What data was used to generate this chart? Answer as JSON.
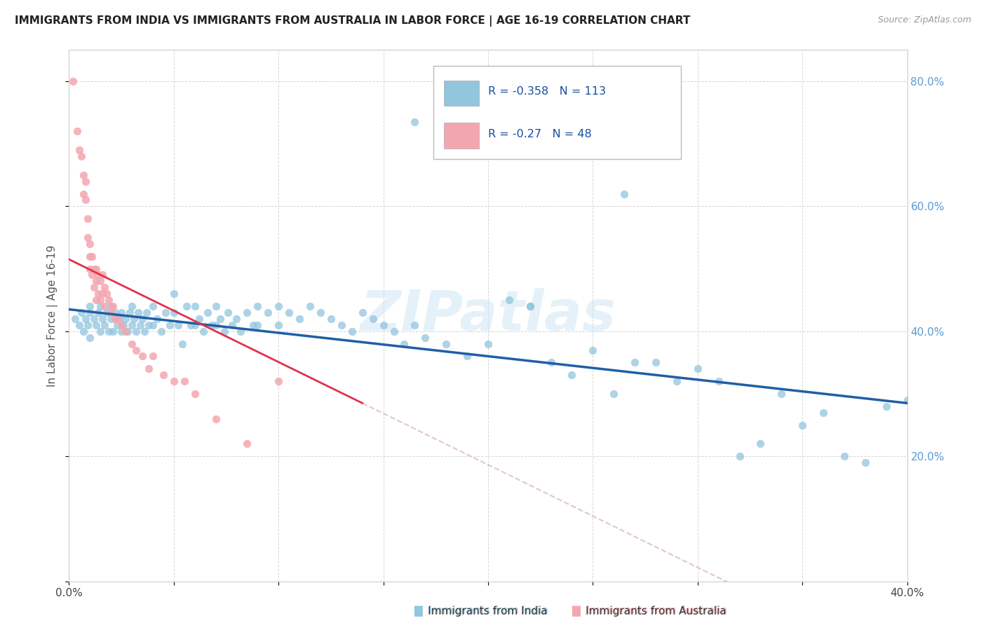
{
  "title": "IMMIGRANTS FROM INDIA VS IMMIGRANTS FROM AUSTRALIA IN LABOR FORCE | AGE 16-19 CORRELATION CHART",
  "source": "Source: ZipAtlas.com",
  "ylabel": "In Labor Force | Age 16-19",
  "xlim": [
    0.0,
    0.4
  ],
  "ylim": [
    0.0,
    0.85
  ],
  "x_ticks": [
    0.0,
    0.05,
    0.1,
    0.15,
    0.2,
    0.25,
    0.3,
    0.35,
    0.4
  ],
  "y_ticks": [
    0.0,
    0.2,
    0.4,
    0.6,
    0.8
  ],
  "india_R": -0.358,
  "india_N": 113,
  "australia_R": -0.27,
  "australia_N": 48,
  "india_color": "#92c5de",
  "australia_color": "#f4a6b0",
  "india_line_color": "#1f5fa6",
  "australia_line_color": "#e0324a",
  "watermark": "ZIPatlas",
  "india_points_x": [
    0.003,
    0.005,
    0.006,
    0.007,
    0.008,
    0.009,
    0.01,
    0.01,
    0.01,
    0.012,
    0.013,
    0.014,
    0.015,
    0.015,
    0.016,
    0.017,
    0.018,
    0.019,
    0.02,
    0.02,
    0.021,
    0.022,
    0.023,
    0.024,
    0.025,
    0.025,
    0.026,
    0.027,
    0.028,
    0.029,
    0.03,
    0.03,
    0.031,
    0.032,
    0.033,
    0.034,
    0.035,
    0.036,
    0.037,
    0.038,
    0.04,
    0.04,
    0.042,
    0.044,
    0.046,
    0.048,
    0.05,
    0.05,
    0.052,
    0.054,
    0.056,
    0.058,
    0.06,
    0.06,
    0.062,
    0.064,
    0.066,
    0.068,
    0.07,
    0.07,
    0.072,
    0.074,
    0.076,
    0.078,
    0.08,
    0.082,
    0.085,
    0.088,
    0.09,
    0.09,
    0.095,
    0.1,
    0.1,
    0.105,
    0.11,
    0.115,
    0.12,
    0.125,
    0.13,
    0.135,
    0.14,
    0.145,
    0.15,
    0.155,
    0.16,
    0.165,
    0.17,
    0.18,
    0.19,
    0.2,
    0.21,
    0.22,
    0.23,
    0.24,
    0.25,
    0.26,
    0.27,
    0.28,
    0.29,
    0.3,
    0.31,
    0.32,
    0.33,
    0.34,
    0.35,
    0.36,
    0.37,
    0.38,
    0.39,
    0.4,
    0.165,
    0.265,
    0.22
  ],
  "india_points_y": [
    0.42,
    0.41,
    0.43,
    0.4,
    0.42,
    0.41,
    0.44,
    0.43,
    0.39,
    0.42,
    0.41,
    0.43,
    0.44,
    0.4,
    0.42,
    0.41,
    0.43,
    0.4,
    0.44,
    0.42,
    0.4,
    0.43,
    0.41,
    0.42,
    0.43,
    0.4,
    0.41,
    0.42,
    0.4,
    0.43,
    0.44,
    0.41,
    0.42,
    0.4,
    0.43,
    0.41,
    0.42,
    0.4,
    0.43,
    0.41,
    0.44,
    0.41,
    0.42,
    0.4,
    0.43,
    0.41,
    0.46,
    0.43,
    0.41,
    0.38,
    0.44,
    0.41,
    0.44,
    0.41,
    0.42,
    0.4,
    0.43,
    0.41,
    0.44,
    0.41,
    0.42,
    0.4,
    0.43,
    0.41,
    0.42,
    0.4,
    0.43,
    0.41,
    0.44,
    0.41,
    0.43,
    0.44,
    0.41,
    0.43,
    0.42,
    0.44,
    0.43,
    0.42,
    0.41,
    0.4,
    0.43,
    0.42,
    0.41,
    0.4,
    0.38,
    0.41,
    0.39,
    0.38,
    0.36,
    0.38,
    0.45,
    0.44,
    0.35,
    0.33,
    0.37,
    0.3,
    0.35,
    0.35,
    0.32,
    0.34,
    0.32,
    0.2,
    0.22,
    0.3,
    0.25,
    0.27,
    0.2,
    0.19,
    0.28,
    0.29,
    0.735,
    0.62,
    0.44
  ],
  "australia_points_x": [
    0.002,
    0.004,
    0.005,
    0.006,
    0.007,
    0.007,
    0.008,
    0.008,
    0.009,
    0.009,
    0.01,
    0.01,
    0.01,
    0.011,
    0.011,
    0.012,
    0.012,
    0.013,
    0.013,
    0.013,
    0.014,
    0.014,
    0.015,
    0.015,
    0.016,
    0.016,
    0.017,
    0.017,
    0.018,
    0.019,
    0.02,
    0.021,
    0.022,
    0.023,
    0.025,
    0.027,
    0.03,
    0.032,
    0.035,
    0.038,
    0.04,
    0.045,
    0.05,
    0.055,
    0.06,
    0.07,
    0.085,
    0.1
  ],
  "australia_points_y": [
    0.8,
    0.72,
    0.69,
    0.68,
    0.65,
    0.62,
    0.64,
    0.61,
    0.58,
    0.55,
    0.54,
    0.52,
    0.5,
    0.52,
    0.49,
    0.5,
    0.47,
    0.5,
    0.48,
    0.45,
    0.49,
    0.46,
    0.48,
    0.45,
    0.49,
    0.46,
    0.47,
    0.44,
    0.46,
    0.45,
    0.43,
    0.44,
    0.42,
    0.42,
    0.41,
    0.4,
    0.38,
    0.37,
    0.36,
    0.34,
    0.36,
    0.33,
    0.32,
    0.32,
    0.3,
    0.26,
    0.22,
    0.32
  ]
}
